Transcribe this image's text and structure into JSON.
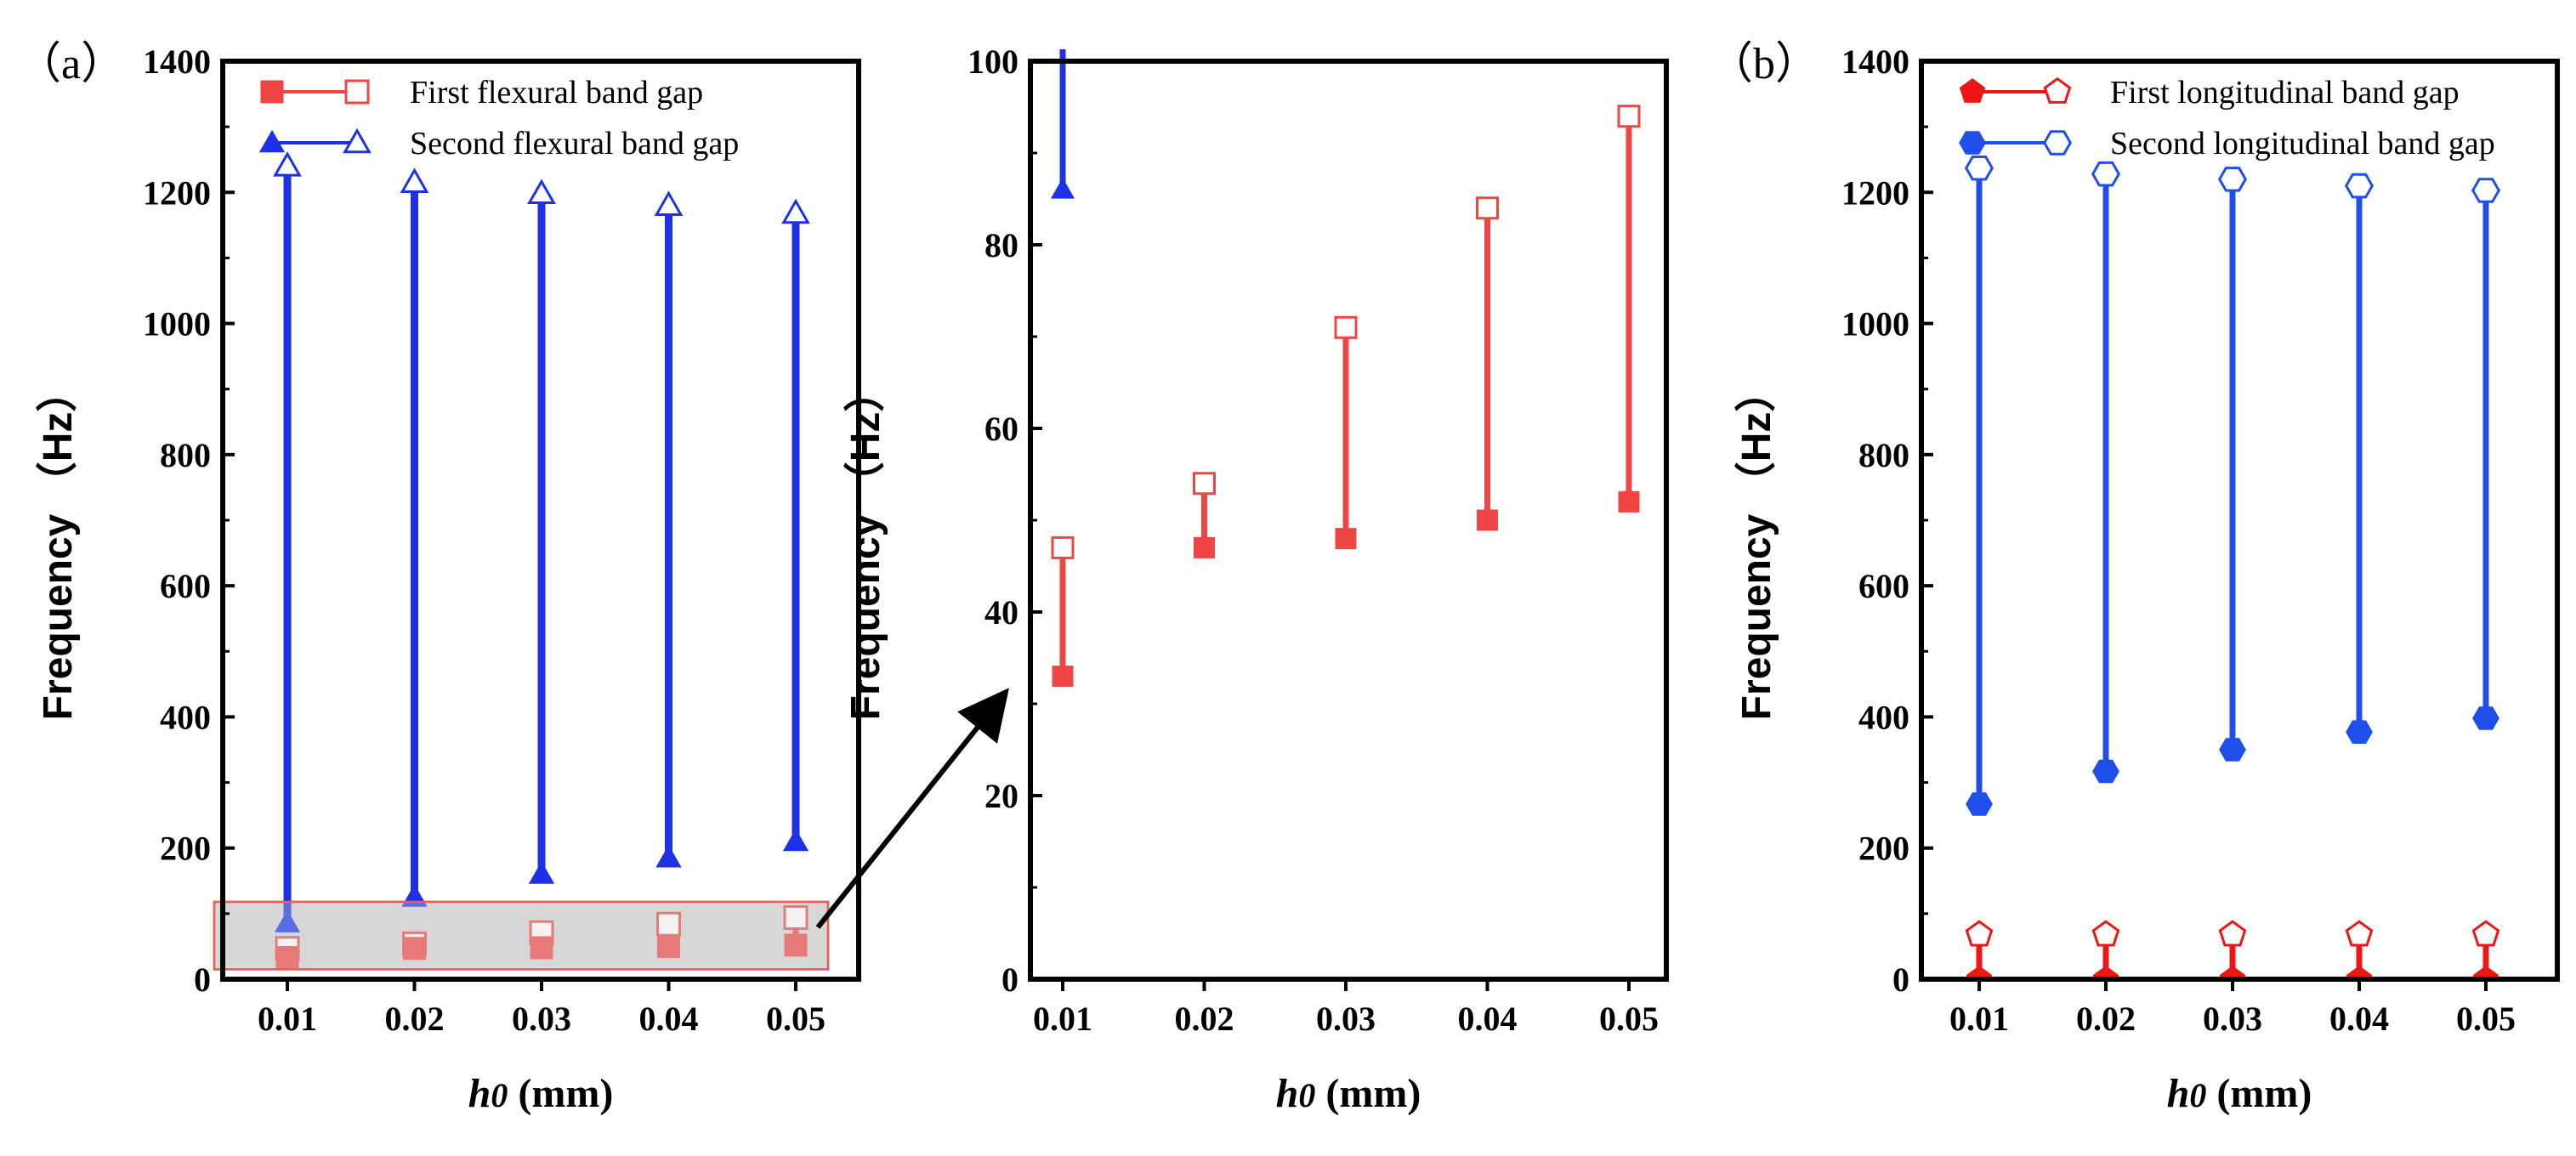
{
  "chart_data": [
    {
      "panel_label": "（a）",
      "type": "range",
      "x": [
        0.01,
        0.02,
        0.03,
        0.04,
        0.05
      ],
      "x_tick_labels": [
        "0.01",
        "0.02",
        "0.03",
        "0.04",
        "0.05"
      ],
      "xlabel_var": "h",
      "xlabel_sub": "0",
      "xlabel_unit": " (mm)",
      "ylabel": "Frequency （Hz）",
      "ylim": [
        0,
        1400
      ],
      "yticks": [
        0,
        200,
        400,
        600,
        800,
        1000,
        1200,
        1400
      ],
      "series": [
        {
          "name": "First flexural band gap",
          "color": "#f04545",
          "lower": [
            33,
            47,
            48,
            50,
            52
          ],
          "upper": [
            47,
            54,
            71,
            84,
            94
          ],
          "lower_marker": "filled-square",
          "upper_marker": "open-square"
        },
        {
          "name": "Second flexural band gap",
          "color": "#1d32e8",
          "lower": [
            86,
            125,
            160,
            185,
            210
          ],
          "upper": [
            1240,
            1215,
            1198,
            1180,
            1168
          ],
          "lower_marker": "filled-triangle",
          "upper_marker": "open-triangle"
        }
      ],
      "zoom_box": {
        "y_range": [
          15,
          118
        ]
      }
    },
    {
      "panel_label": "",
      "type": "range",
      "x": [
        0.01,
        0.02,
        0.03,
        0.04,
        0.05
      ],
      "x_tick_labels": [
        "0.01",
        "0.02",
        "0.03",
        "0.04",
        "0.05"
      ],
      "xlabel_var": "h",
      "xlabel_sub": "0",
      "xlabel_unit": " (mm)",
      "ylabel": "Frequency （Hz）",
      "ylim": [
        0,
        100
      ],
      "yticks": [
        0,
        20,
        40,
        60,
        80,
        100
      ],
      "series": [
        {
          "name": "First flexural band gap",
          "color": "#f04545",
          "lower": [
            33,
            47,
            48,
            50,
            52
          ],
          "upper": [
            47,
            54,
            71,
            84,
            94
          ],
          "lower_marker": "filled-square",
          "upper_marker": "open-square"
        },
        {
          "name": "Second flexural band gap",
          "color": "#1d32e8",
          "lower": [
            86
          ],
          "upper": [
            1240
          ],
          "lower_marker": "filled-triangle",
          "upper_marker": "open-triangle"
        }
      ]
    },
    {
      "panel_label": "（b）",
      "type": "range",
      "x": [
        0.01,
        0.02,
        0.03,
        0.04,
        0.05
      ],
      "x_tick_labels": [
        "0.01",
        "0.02",
        "0.03",
        "0.04",
        "0.05"
      ],
      "xlabel_var": "h",
      "xlabel_sub": "0",
      "xlabel_unit": " (mm)",
      "ylabel": "Frequency （Hz）",
      "ylim": [
        0,
        1400
      ],
      "yticks": [
        0,
        200,
        400,
        600,
        800,
        1000,
        1200,
        1400
      ],
      "series": [
        {
          "name": "First longitudinal band gap",
          "color": "#ee1515",
          "lower": [
            0,
            0,
            0,
            0,
            0
          ],
          "upper": [
            68,
            68,
            68,
            68,
            68
          ],
          "lower_marker": "filled-pentagon",
          "upper_marker": "open-pentagon"
        },
        {
          "name": "Second longitudinal band gap",
          "color": "#1f4fe8",
          "lower": [
            267,
            317,
            350,
            377,
            398
          ],
          "upper": [
            1237,
            1228,
            1220,
            1210,
            1203
          ],
          "lower_marker": "filled-hexagon",
          "upper_marker": "open-hexagon"
        }
      ]
    }
  ]
}
